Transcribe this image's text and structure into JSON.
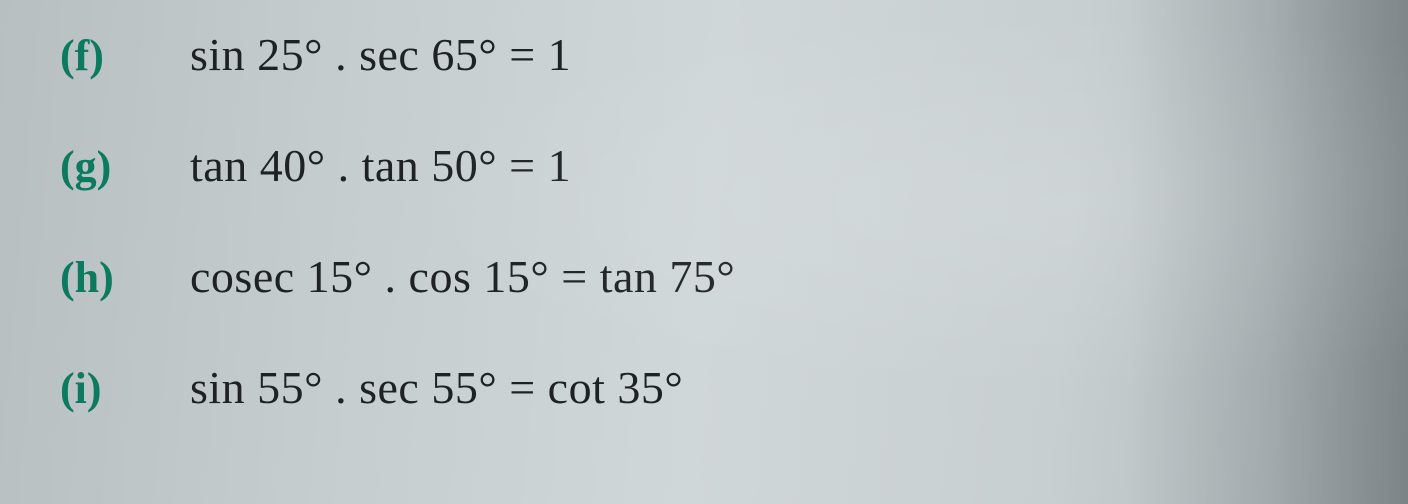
{
  "background_color": "#c5cdcf",
  "label_color": "#0b7a5f",
  "text_color": "#1f2224",
  "font_family": "Times New Roman, serif",
  "label_fontsize": 44,
  "equation_fontsize": 46,
  "rows": [
    {
      "label": "(f)",
      "equation": "sin 25° . sec 65° = 1"
    },
    {
      "label": "(g)",
      "equation": "tan 40° . tan 50° = 1"
    },
    {
      "label": "(h)",
      "equation": "cosec 15° . cos 15° = tan 75°"
    },
    {
      "label": "(i)",
      "equation": "sin 55° . sec 55° = cot 35°"
    }
  ]
}
